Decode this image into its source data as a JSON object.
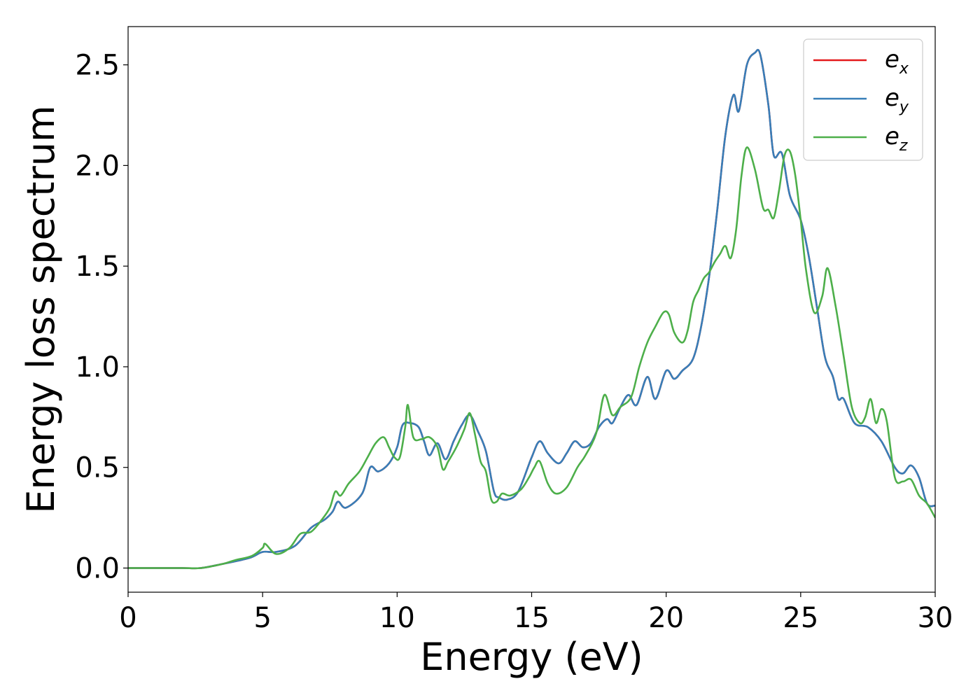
{
  "chart_data": {
    "type": "line",
    "title": "",
    "xlabel": "Energy (eV)",
    "ylabel": "Energy loss spectrum",
    "xlim": [
      0,
      30
    ],
    "ylim": [
      -0.12,
      2.69
    ],
    "xticks": [
      0,
      5,
      10,
      15,
      20,
      25,
      30
    ],
    "xtick_labels": [
      "0",
      "5",
      "10",
      "15",
      "20",
      "25",
      "30"
    ],
    "yticks": [
      0.0,
      0.5,
      1.0,
      1.5,
      2.0,
      2.5
    ],
    "ytick_labels": [
      "0.0",
      "0.5",
      "1.0",
      "1.5",
      "2.0",
      "2.5"
    ],
    "grid": false,
    "legend_position": "top-right",
    "series": [
      {
        "name": "e_x",
        "legend_base": "e",
        "legend_sub": "x",
        "color": "#e41a1c",
        "x": [
          0,
          2,
          2.7,
          3.5,
          4.5,
          5.0,
          5.5,
          6.2,
          6.8,
          7.3,
          7.6,
          7.8,
          8.1,
          8.7,
          9.0,
          9.3,
          9.7,
          10.0,
          10.2,
          10.5,
          10.8,
          11.0,
          11.2,
          11.5,
          11.8,
          12.1,
          12.4,
          12.7,
          13.0,
          13.3,
          13.6,
          13.8,
          14.1,
          14.5,
          15.0,
          15.3,
          15.6,
          16.0,
          16.3,
          16.6,
          16.9,
          17.2,
          17.5,
          17.8,
          18.0,
          18.3,
          18.6,
          18.9,
          19.3,
          19.6,
          20.0,
          20.3,
          20.6,
          21.0,
          21.3,
          21.6,
          21.9,
          22.2,
          22.5,
          22.7,
          23.0,
          23.3,
          23.5,
          23.8,
          24.0,
          24.3,
          24.6,
          25.0,
          25.3,
          25.6,
          25.9,
          26.2,
          26.4,
          26.6,
          27.0,
          27.5,
          28.0,
          28.5,
          28.8,
          29.1,
          29.4,
          29.7,
          30.0
        ],
        "y": [
          0.0,
          0.0,
          0.0,
          0.02,
          0.05,
          0.08,
          0.08,
          0.11,
          0.2,
          0.24,
          0.28,
          0.33,
          0.3,
          0.37,
          0.5,
          0.48,
          0.52,
          0.6,
          0.71,
          0.72,
          0.7,
          0.63,
          0.56,
          0.62,
          0.54,
          0.63,
          0.71,
          0.76,
          0.68,
          0.58,
          0.38,
          0.35,
          0.34,
          0.38,
          0.55,
          0.63,
          0.57,
          0.52,
          0.57,
          0.63,
          0.6,
          0.62,
          0.7,
          0.74,
          0.72,
          0.8,
          0.86,
          0.81,
          0.95,
          0.84,
          0.98,
          0.94,
          0.98,
          1.04,
          1.2,
          1.45,
          1.78,
          2.15,
          2.35,
          2.27,
          2.5,
          2.56,
          2.55,
          2.3,
          2.05,
          2.06,
          1.85,
          1.73,
          1.55,
          1.3,
          1.05,
          0.95,
          0.84,
          0.84,
          0.72,
          0.7,
          0.63,
          0.5,
          0.47,
          0.51,
          0.45,
          0.32,
          0.31
        ]
      },
      {
        "name": "e_y",
        "legend_base": "e",
        "legend_sub": "y",
        "color": "#377eb8",
        "x": [
          0,
          2,
          2.7,
          3.5,
          4.5,
          5.0,
          5.5,
          6.2,
          6.8,
          7.3,
          7.6,
          7.8,
          8.1,
          8.7,
          9.0,
          9.3,
          9.7,
          10.0,
          10.2,
          10.5,
          10.8,
          11.0,
          11.2,
          11.5,
          11.8,
          12.1,
          12.4,
          12.7,
          13.0,
          13.3,
          13.6,
          13.8,
          14.1,
          14.5,
          15.0,
          15.3,
          15.6,
          16.0,
          16.3,
          16.6,
          16.9,
          17.2,
          17.5,
          17.8,
          18.0,
          18.3,
          18.6,
          18.9,
          19.3,
          19.6,
          20.0,
          20.3,
          20.6,
          21.0,
          21.3,
          21.6,
          21.9,
          22.2,
          22.5,
          22.7,
          23.0,
          23.3,
          23.5,
          23.8,
          24.0,
          24.3,
          24.6,
          25.0,
          25.3,
          25.6,
          25.9,
          26.2,
          26.4,
          26.6,
          27.0,
          27.5,
          28.0,
          28.5,
          28.8,
          29.1,
          29.4,
          29.7,
          30.0
        ],
        "y": [
          0.0,
          0.0,
          0.0,
          0.02,
          0.05,
          0.08,
          0.08,
          0.11,
          0.2,
          0.24,
          0.28,
          0.33,
          0.3,
          0.37,
          0.5,
          0.48,
          0.52,
          0.6,
          0.71,
          0.72,
          0.7,
          0.63,
          0.56,
          0.62,
          0.54,
          0.63,
          0.71,
          0.76,
          0.68,
          0.58,
          0.38,
          0.35,
          0.34,
          0.38,
          0.55,
          0.63,
          0.57,
          0.52,
          0.57,
          0.63,
          0.6,
          0.62,
          0.7,
          0.74,
          0.72,
          0.8,
          0.86,
          0.81,
          0.95,
          0.84,
          0.98,
          0.94,
          0.98,
          1.04,
          1.2,
          1.45,
          1.78,
          2.15,
          2.35,
          2.27,
          2.5,
          2.56,
          2.55,
          2.3,
          2.05,
          2.06,
          1.85,
          1.73,
          1.55,
          1.3,
          1.05,
          0.95,
          0.84,
          0.84,
          0.72,
          0.7,
          0.63,
          0.5,
          0.47,
          0.51,
          0.45,
          0.32,
          0.31
        ]
      },
      {
        "name": "e_z",
        "legend_base": "e",
        "legend_sub": "z",
        "color": "#4daf4a",
        "x": [
          0,
          2,
          2.7,
          3.5,
          4.0,
          4.6,
          5.0,
          5.1,
          5.5,
          6.0,
          6.4,
          6.8,
          7.2,
          7.5,
          7.7,
          7.9,
          8.2,
          8.6,
          8.9,
          9.2,
          9.5,
          9.7,
          9.9,
          10.1,
          10.3,
          10.4,
          10.6,
          10.9,
          11.2,
          11.5,
          11.7,
          11.9,
          12.2,
          12.5,
          12.7,
          12.9,
          13.1,
          13.3,
          13.5,
          13.7,
          13.9,
          14.2,
          14.6,
          14.9,
          15.1,
          15.3,
          15.6,
          15.9,
          16.3,
          16.7,
          17.0,
          17.4,
          17.7,
          18.0,
          18.3,
          18.7,
          19.0,
          19.3,
          19.6,
          19.9,
          20.1,
          20.3,
          20.6,
          20.8,
          21.0,
          21.2,
          21.4,
          21.6,
          21.8,
          22.0,
          22.2,
          22.4,
          22.6,
          22.8,
          23.0,
          23.3,
          23.6,
          23.8,
          24.0,
          24.2,
          24.4,
          24.6,
          24.8,
          25.0,
          25.2,
          25.5,
          25.8,
          26.0,
          26.3,
          26.6,
          26.9,
          27.2,
          27.4,
          27.6,
          27.8,
          28.0,
          28.2,
          28.5,
          28.8,
          29.1,
          29.4,
          29.7,
          30.0
        ],
        "y": [
          0.0,
          0.0,
          0.0,
          0.02,
          0.04,
          0.06,
          0.1,
          0.12,
          0.07,
          0.1,
          0.17,
          0.18,
          0.24,
          0.3,
          0.38,
          0.36,
          0.42,
          0.48,
          0.55,
          0.62,
          0.65,
          0.6,
          0.55,
          0.55,
          0.7,
          0.81,
          0.65,
          0.64,
          0.65,
          0.6,
          0.49,
          0.53,
          0.6,
          0.69,
          0.77,
          0.66,
          0.53,
          0.48,
          0.34,
          0.33,
          0.37,
          0.36,
          0.39,
          0.45,
          0.5,
          0.53,
          0.42,
          0.37,
          0.4,
          0.5,
          0.56,
          0.67,
          0.86,
          0.76,
          0.8,
          0.85,
          1.0,
          1.12,
          1.2,
          1.27,
          1.26,
          1.17,
          1.12,
          1.18,
          1.32,
          1.38,
          1.44,
          1.47,
          1.52,
          1.56,
          1.6,
          1.54,
          1.68,
          1.95,
          2.09,
          1.98,
          1.79,
          1.78,
          1.74,
          1.88,
          2.05,
          2.07,
          1.95,
          1.73,
          1.48,
          1.27,
          1.35,
          1.49,
          1.3,
          1.05,
          0.8,
          0.72,
          0.75,
          0.84,
          0.72,
          0.79,
          0.73,
          0.45,
          0.43,
          0.44,
          0.36,
          0.32,
          0.25
        ]
      }
    ]
  }
}
